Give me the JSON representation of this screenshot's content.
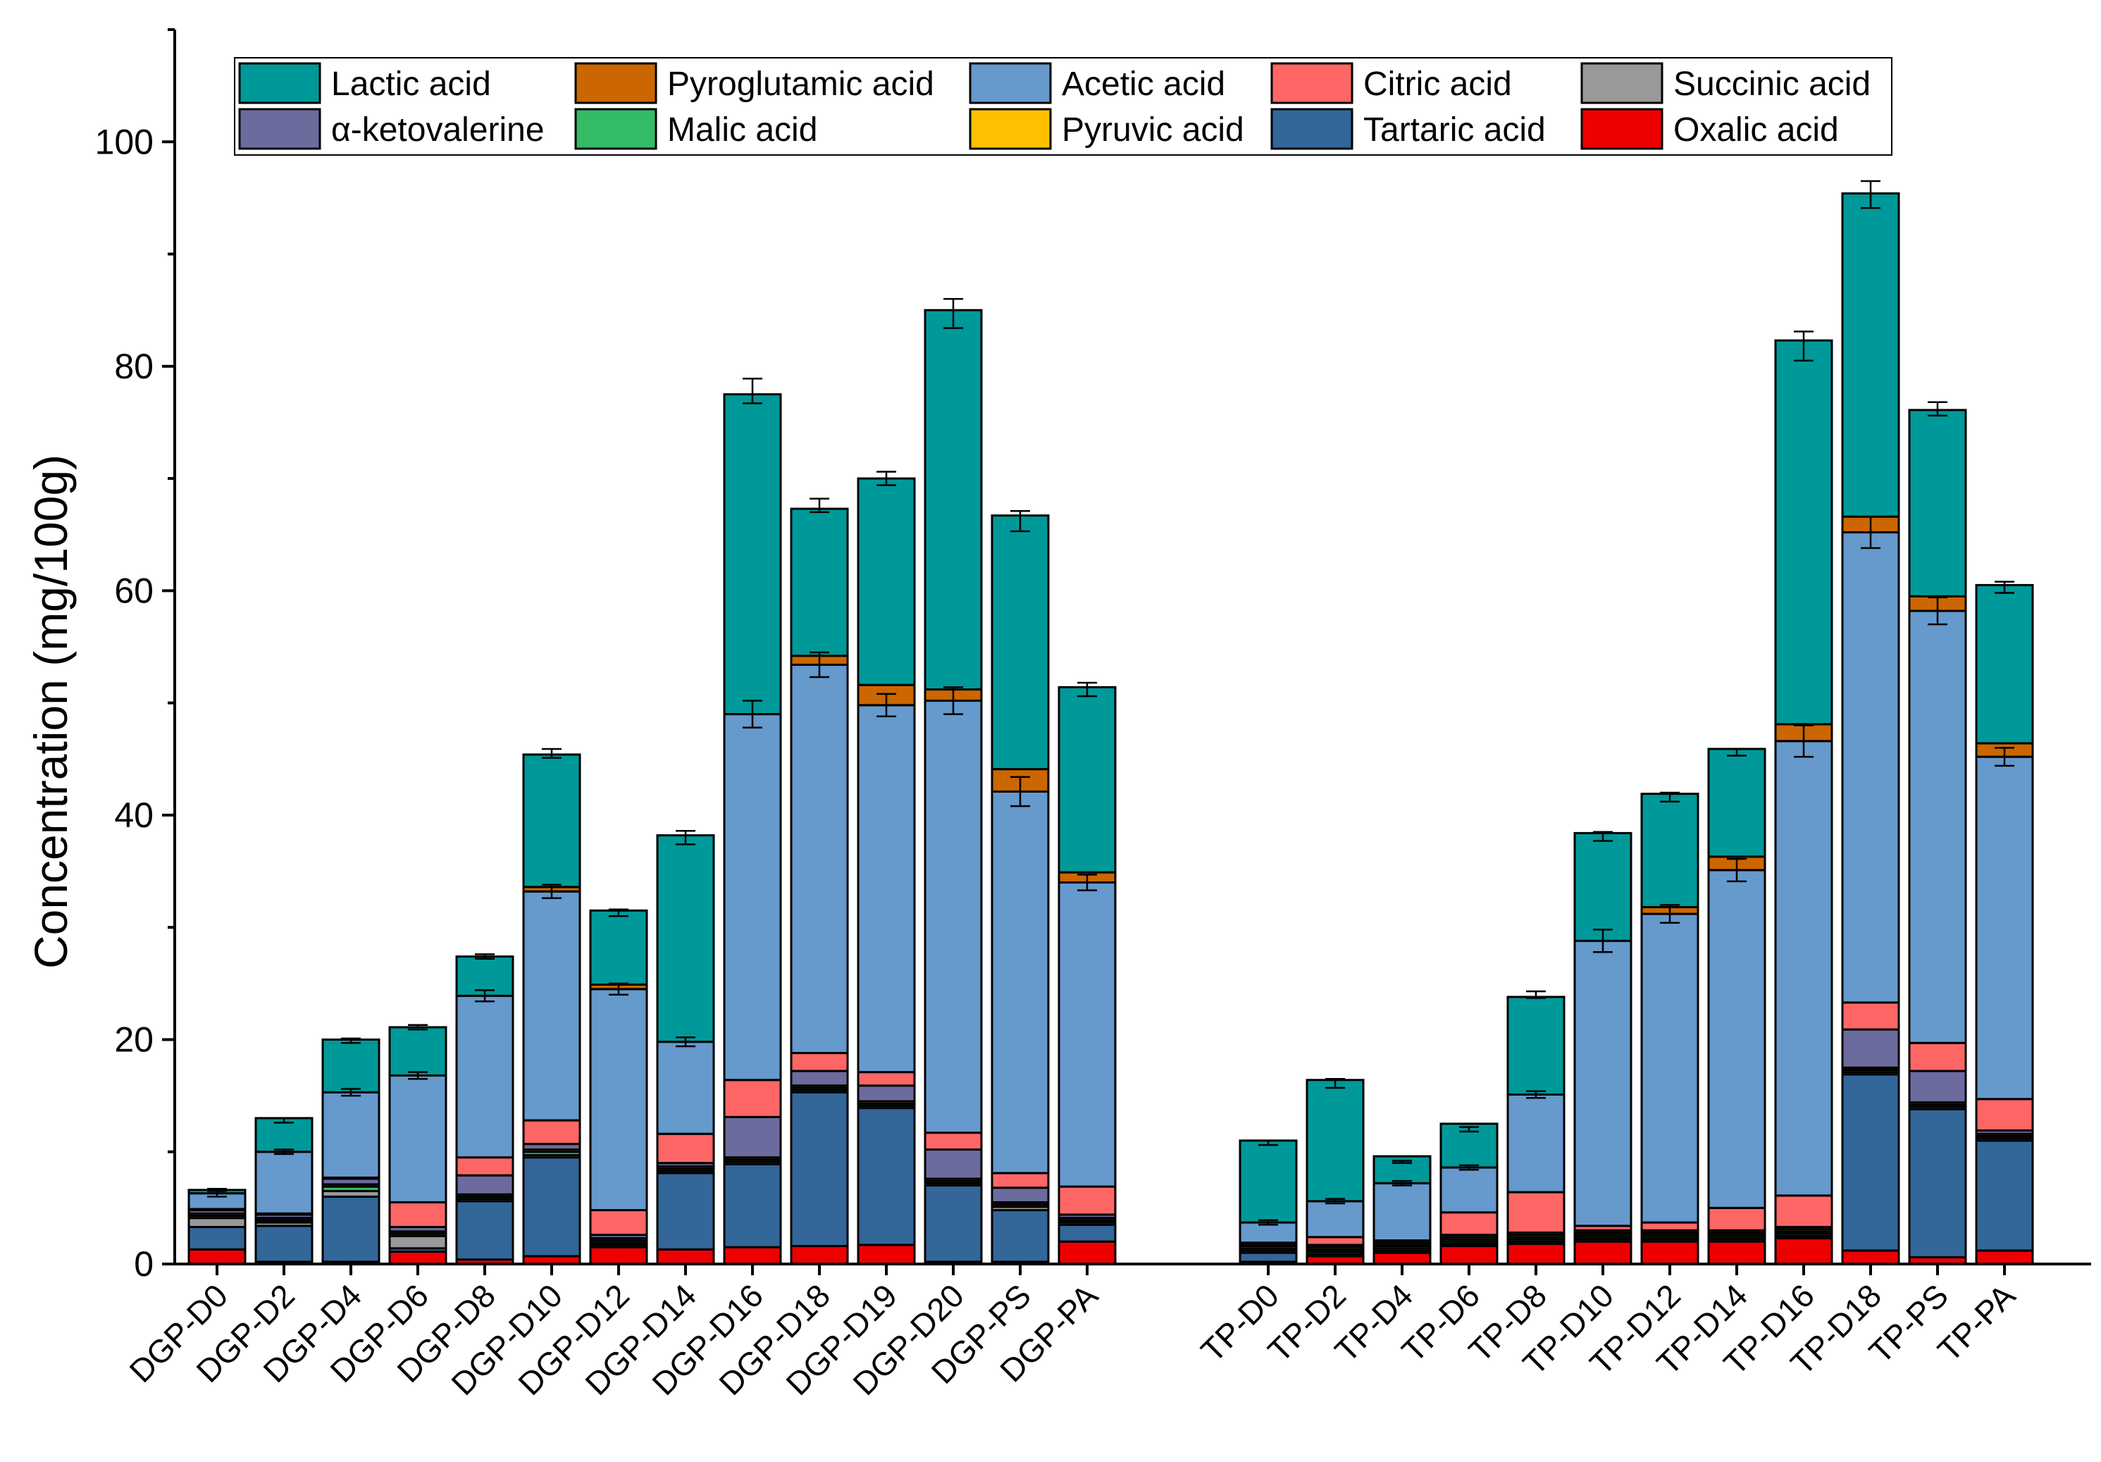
{
  "chart_data": {
    "type": "bar",
    "stacked": true,
    "ylabel": "Concentration (mg/100g)",
    "xlabel": "",
    "ylim": [
      0,
      110
    ],
    "yticks": [
      0,
      20,
      40,
      60,
      80,
      100
    ],
    "grid": false,
    "legend_position": "top",
    "groups": [
      {
        "name": "DGP",
        "categories": [
          "DGP-D0",
          "DGP-D2",
          "DGP-D4",
          "DGP-D6",
          "DGP-D8",
          "DGP-D10",
          "DGP-D12",
          "DGP-D14",
          "DGP-D16",
          "DGP-D18",
          "DGP-D19",
          "DGP-D20",
          "DGP-PS",
          "DGP-PA"
        ]
      },
      {
        "name": "TP",
        "categories": [
          "TP-D0",
          "TP-D2",
          "TP-D4",
          "TP-D6",
          "TP-D8",
          "TP-D10",
          "TP-D12",
          "TP-D14",
          "TP-D16",
          "TP-D18",
          "TP-PS",
          "TP-PA"
        ]
      }
    ],
    "categories": [
      "DGP-D0",
      "DGP-D2",
      "DGP-D4",
      "DGP-D6",
      "DGP-D8",
      "DGP-D10",
      "DGP-D12",
      "DGP-D14",
      "DGP-D16",
      "DGP-D18",
      "DGP-D19",
      "DGP-D20",
      "DGP-PS",
      "DGP-PA",
      "TP-D0",
      "TP-D2",
      "TP-D4",
      "TP-D6",
      "TP-D8",
      "TP-D10",
      "TP-D12",
      "TP-D14",
      "TP-D16",
      "TP-D18",
      "TP-PS",
      "TP-PA"
    ],
    "series": [
      {
        "name": "Oxalic acid",
        "color": "#ee0000",
        "values": [
          1.3,
          0.2,
          0.2,
          1.1,
          0.4,
          0.7,
          1.5,
          1.3,
          1.5,
          1.6,
          1.7,
          0.2,
          0.2,
          2.0,
          0.2,
          0.7,
          1.0,
          1.6,
          1.8,
          2.0,
          2.0,
          2.0,
          2.3,
          1.2,
          0.6,
          1.2
        ]
      },
      {
        "name": "Tartaric acid",
        "color": "#336699",
        "values": [
          2.0,
          3.2,
          5.8,
          0.3,
          5.2,
          8.8,
          0.2,
          6.8,
          7.4,
          13.7,
          12.2,
          6.8,
          4.6,
          1.5,
          0.8,
          0.2,
          0.2,
          0.2,
          0.2,
          0.2,
          0.2,
          0.2,
          0.2,
          15.7,
          13.2,
          9.8
        ]
      },
      {
        "name": "Succinic acid",
        "color": "#999999",
        "values": [
          0.8,
          0.3,
          0.5,
          1.1,
          0.2,
          0.2,
          0.2,
          0.2,
          0.2,
          0.2,
          0.2,
          0.2,
          0.3,
          0.2,
          0.2,
          0.2,
          0.2,
          0.2,
          0.2,
          0.2,
          0.2,
          0.2,
          0.2,
          0.2,
          0.2,
          0.2
        ]
      },
      {
        "name": "Malic acid",
        "color": "#33bb66",
        "values": [
          0.2,
          0.2,
          0.4,
          0.2,
          0.2,
          0.3,
          0.2,
          0.2,
          0.2,
          0.2,
          0.2,
          0.2,
          0.2,
          0.2,
          0.2,
          0.2,
          0.2,
          0.2,
          0.2,
          0.2,
          0.2,
          0.2,
          0.2,
          0.2,
          0.2,
          0.2
        ]
      },
      {
        "name": "Pyruvic acid",
        "color": "#ffc000",
        "values": [
          0.2,
          0.2,
          0.2,
          0.2,
          0.2,
          0.2,
          0.2,
          0.2,
          0.2,
          0.2,
          0.2,
          0.2,
          0.2,
          0.2,
          0.2,
          0.2,
          0.2,
          0.2,
          0.2,
          0.2,
          0.2,
          0.2,
          0.2,
          0.2,
          0.2,
          0.2
        ]
      },
      {
        "name": "α-ketovalerine",
        "color": "#6b6b9e",
        "values": [
          0.3,
          0.3,
          0.5,
          0.4,
          1.7,
          0.5,
          0.3,
          0.3,
          3.6,
          1.3,
          1.4,
          2.6,
          1.3,
          0.3,
          0.2,
          0.2,
          0.2,
          0.2,
          0.2,
          0.2,
          0.2,
          0.2,
          0.2,
          3.4,
          2.8,
          0.3
        ]
      },
      {
        "name": "Citric acid",
        "color": "#ff6666",
        "values": [
          0.1,
          0.1,
          0.1,
          2.2,
          1.6,
          2.1,
          2.2,
          2.6,
          3.3,
          1.6,
          1.2,
          1.5,
          1.3,
          2.5,
          0.1,
          0.7,
          0.1,
          2.0,
          3.6,
          0.4,
          0.7,
          2.0,
          2.8,
          2.4,
          2.5,
          2.8
        ]
      },
      {
        "name": "Acetic acid",
        "color": "#6699cc",
        "values": [
          1.4,
          5.5,
          7.6,
          11.3,
          14.4,
          20.4,
          19.7,
          8.2,
          32.6,
          34.6,
          32.7,
          38.5,
          34.0,
          27.1,
          1.8,
          3.2,
          5.1,
          4.0,
          8.7,
          25.4,
          27.5,
          30.1,
          40.5,
          41.9,
          38.5,
          30.5
        ]
      },
      {
        "name": "Pyroglutamic acid",
        "color": "#cc6600",
        "values": [
          0.0,
          0.0,
          0.0,
          0.0,
          0.0,
          0.4,
          0.4,
          0.0,
          0.0,
          0.8,
          1.8,
          1.0,
          2.0,
          0.9,
          0.0,
          0.0,
          0.0,
          0.0,
          0.0,
          0.0,
          0.6,
          1.2,
          1.5,
          1.4,
          1.3,
          1.2
        ]
      },
      {
        "name": "Lactic acid",
        "color": "#009999",
        "values": [
          0.3,
          3.0,
          4.7,
          4.3,
          3.5,
          11.8,
          6.6,
          18.4,
          28.5,
          13.1,
          18.4,
          33.8,
          22.6,
          16.5,
          7.3,
          10.8,
          2.4,
          3.9,
          8.7,
          9.6,
          10.1,
          9.6,
          34.2,
          28.8,
          16.6,
          14.1
        ]
      }
    ],
    "totals": [
      6.6,
      12.8,
      19.9,
      21.1,
      27.4,
      45.5,
      31.3,
      38.0,
      77.8,
      67.6,
      70.0,
      84.7,
      66.2,
      51.2,
      10.8,
      16.1,
      9.1,
      12.0,
      24.0,
      38.1,
      41.6,
      45.6,
      81.8,
      95.3,
      76.2,
      60.3
    ],
    "error_bars": [
      0.1,
      0.2,
      0.2,
      0.2,
      0.2,
      0.4,
      0.3,
      0.6,
      1.1,
      0.6,
      0.6,
      1.3,
      0.9,
      0.6,
      0.2,
      0.4,
      0.1,
      0.2,
      0.3,
      0.4,
      0.4,
      0.3,
      1.3,
      1.2,
      0.6,
      0.5
    ],
    "inner_error_bars": [
      0.3,
      0.2,
      0.3,
      0.3,
      0.5,
      0.6,
      0.5,
      0.4,
      1.2,
      1.1,
      1.0,
      1.2,
      1.3,
      0.7,
      0.2,
      0.2,
      0.2,
      0.2,
      0.3,
      1.0,
      0.8,
      1.0,
      1.4,
      1.4,
      1.2,
      0.8
    ]
  },
  "legend": {
    "items": [
      {
        "label": "Lactic acid",
        "color": "#009999"
      },
      {
        "label": "Pyroglutamic acid",
        "color": "#cc6600"
      },
      {
        "label": "Acetic acid",
        "color": "#6699cc"
      },
      {
        "label": "Citric acid",
        "color": "#ff6666"
      },
      {
        "label": "Succinic acid",
        "color": "#999999"
      },
      {
        "label": "α-ketovalerine",
        "color": "#6b6b9e"
      },
      {
        "label": "Malic acid",
        "color": "#33bb66"
      },
      {
        "label": "Pyruvic acid",
        "color": "#ffc000"
      },
      {
        "label": "Tartaric acid",
        "color": "#336699"
      },
      {
        "label": "Oxalic acid",
        "color": "#ee0000"
      }
    ]
  }
}
